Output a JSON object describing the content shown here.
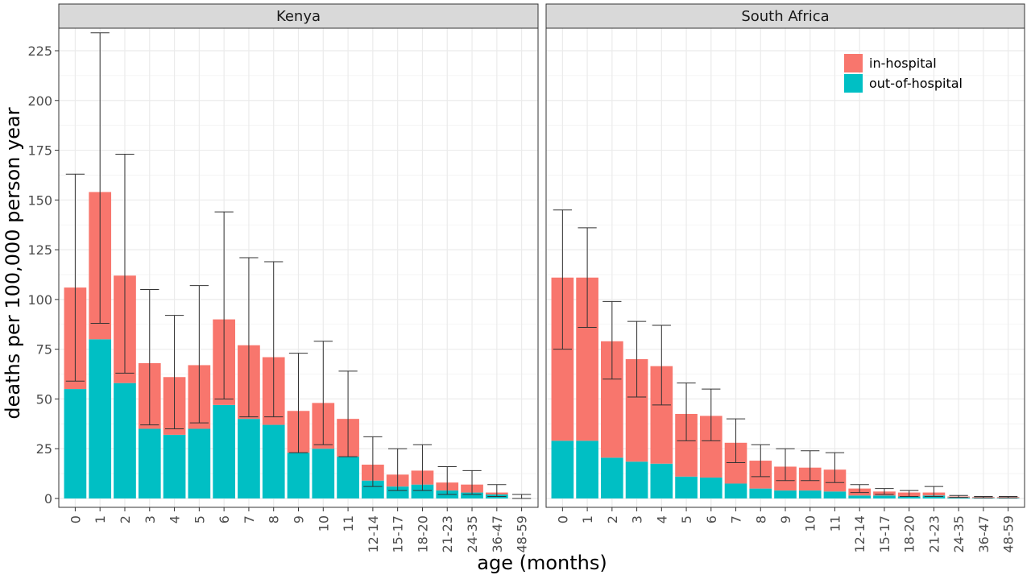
{
  "chart_data": {
    "type": "bar",
    "stacked": true,
    "facet_layout": "two panels side by side",
    "categories": [
      "0",
      "1",
      "2",
      "3",
      "4",
      "5",
      "6",
      "7",
      "8",
      "9",
      "10",
      "11",
      "12-14",
      "15-17",
      "18-20",
      "21-23",
      "24-35",
      "36-47",
      "48-59"
    ],
    "xlabel": "age (months)",
    "ylabel": "deaths per 100,000 person year",
    "ylim": [
      0,
      235
    ],
    "yticks": [
      0,
      25,
      50,
      75,
      100,
      125,
      150,
      175,
      200,
      225
    ],
    "grid": true,
    "legend": {
      "placement": "top-right inside South Africa panel",
      "entries": [
        {
          "label": "in-hospital",
          "color": "#F8766D"
        },
        {
          "label": "out-of-hospital",
          "color": "#00BFC4"
        }
      ]
    },
    "facets": [
      {
        "title": "Kenya",
        "series": [
          {
            "name": "out-of-hospital",
            "color": "#00BFC4",
            "values": [
              55,
              80,
              58,
              35,
              32,
              35,
              47,
              40,
              37,
              23,
              25,
              21,
              9,
              6,
              7,
              4,
              3,
              2,
              0
            ]
          },
          {
            "name": "in-hospital",
            "color": "#F8766D",
            "values": [
              51,
              74,
              54,
              33,
              29,
              32,
              43,
              37,
              34,
              21,
              23,
              19,
              8,
              6,
              7,
              4,
              4,
              1,
              0
            ]
          }
        ],
        "totals": [
          106,
          154,
          112,
          68,
          61,
          67,
          90,
          77,
          71,
          44,
          48,
          40,
          17,
          12,
          14,
          8,
          7,
          3,
          0
        ],
        "error_bars": [
          [
            59,
            163
          ],
          [
            88,
            234
          ],
          [
            63,
            173
          ],
          [
            37,
            105
          ],
          [
            35,
            92
          ],
          [
            38,
            107
          ],
          [
            50,
            144
          ],
          [
            41,
            121
          ],
          [
            41,
            119
          ],
          [
            23,
            73
          ],
          [
            27,
            79
          ],
          [
            21,
            64
          ],
          [
            6,
            31
          ],
          [
            4,
            25
          ],
          [
            4,
            27
          ],
          [
            2,
            16
          ],
          [
            2,
            14
          ],
          [
            1,
            7
          ],
          [
            0,
            2
          ]
        ]
      },
      {
        "title": "South Africa",
        "series": [
          {
            "name": "out-of-hospital",
            "color": "#00BFC4",
            "values": [
              29,
              29,
              20.5,
              18.5,
              17.5,
              11,
              10.5,
              7.5,
              5,
              4,
              4,
              3.5,
              1.5,
              1.5,
              1,
              1.5,
              0.5,
              0.3,
              0.3
            ]
          },
          {
            "name": "in-hospital",
            "color": "#F8766D",
            "values": [
              82,
              82,
              58.5,
              51.5,
              49,
              31.5,
              31,
              20.5,
              14,
              12,
              11.5,
              11,
              3.5,
              2,
              2,
              1.5,
              0.5,
              0.4,
              0.4
            ]
          }
        ],
        "totals": [
          111,
          111,
          79,
          70,
          66.5,
          42.5,
          41.5,
          28,
          19,
          16,
          15.5,
          14.5,
          5,
          3.5,
          3,
          3,
          1,
          0.7,
          0.7
        ],
        "error_bars": [
          [
            75,
            145
          ],
          [
            86,
            136
          ],
          [
            60,
            99
          ],
          [
            51,
            89
          ],
          [
            47,
            87
          ],
          [
            29,
            58
          ],
          [
            29,
            55
          ],
          [
            18,
            40
          ],
          [
            11,
            27
          ],
          [
            9,
            25
          ],
          [
            9,
            24
          ],
          [
            8,
            23
          ],
          [
            3,
            7
          ],
          [
            2,
            5
          ],
          [
            1,
            4
          ],
          [
            1,
            6
          ],
          [
            0.5,
            1.5
          ],
          [
            0.3,
            1
          ],
          [
            0.3,
            1
          ]
        ]
      }
    ]
  }
}
